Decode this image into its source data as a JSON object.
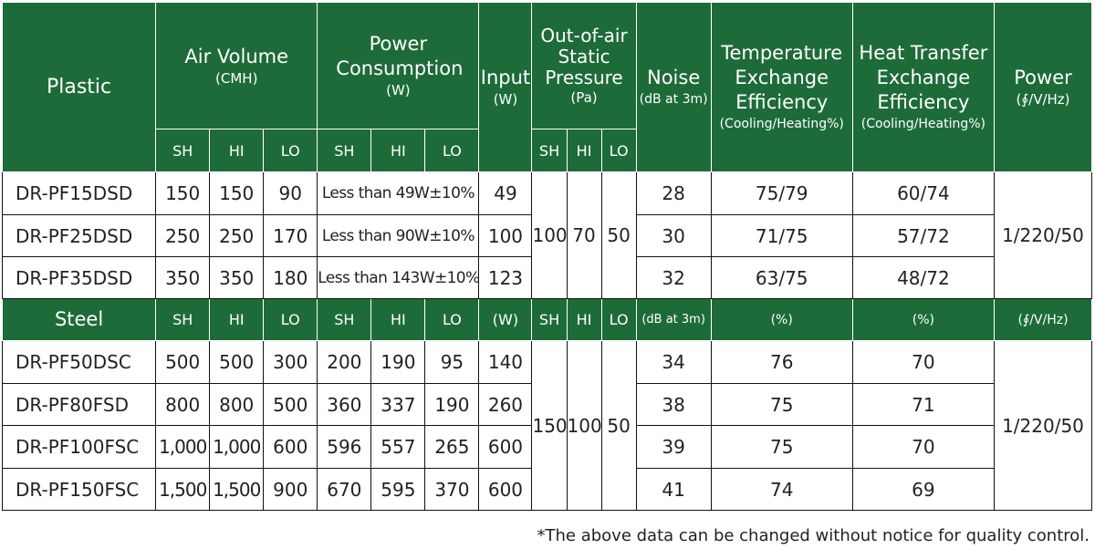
{
  "header": {
    "plastic": "Plastic",
    "air_volume": "Air Volume",
    "air_volume_unit": "(CMH)",
    "power_consumption": "Power Consumption",
    "power_consumption_unit": "(W)",
    "input": "Input",
    "input_unit": "(W)",
    "static_pressure": "Out-of-air Static Pressure",
    "static_pressure_unit": "(Pa)",
    "noise": "Noise",
    "noise_unit": "(dB at 3m)",
    "temp_eff": "Temperature Exchange Efficiency",
    "temp_eff_unit": "(Cooling/Heating%)",
    "heat_eff": "Heat Transfer Exchange Efficiency",
    "heat_eff_unit": "(Cooling/Heating%)",
    "power": "Power",
    "power_unit": "(∮/V/Hz)",
    "sh": "SH",
    "hi": "HI",
    "lo": "LO"
  },
  "plastic_rows": [
    {
      "model": "DR-PF15DSD",
      "sh": "150",
      "hi": "150",
      "lo": "90",
      "consumption": "Less than 49W±10%",
      "input": "49",
      "noise": "28",
      "temp": "75/79",
      "heat": "60/74"
    },
    {
      "model": "DR-PF25DSD",
      "sh": "250",
      "hi": "250",
      "lo": "170",
      "consumption": "Less than 90W±10%",
      "input": "100",
      "noise": "30",
      "temp": "71/75",
      "heat": "57/72"
    },
    {
      "model": "DR-PF35DSD",
      "sh": "350",
      "hi": "350",
      "lo": "180",
      "consumption": "Less than 143W±10%",
      "input": "123",
      "noise": "32",
      "temp": "63/75",
      "heat": "48/72"
    }
  ],
  "plastic_shared": {
    "sp_sh": "100",
    "sp_hi": "70",
    "sp_lo": "50",
    "power": "1/220/50"
  },
  "steel_header": {
    "label": "Steel",
    "sh": "SH",
    "hi": "HI",
    "lo": "LO",
    "c_sh": "SH",
    "c_hi": "HI",
    "c_lo": "LO",
    "input": "(W)",
    "p_sh": "SH",
    "p_hi": "HI",
    "p_lo": "LO",
    "noise": "(dB at 3m)",
    "temp": "(%)",
    "heat": "(%)",
    "power": "(∮/V/Hz)"
  },
  "steel_rows": [
    {
      "model": "DR-PF50DSC",
      "sh": "500",
      "hi": "500",
      "lo": "300",
      "c_sh": "200",
      "c_hi": "190",
      "c_lo": "95",
      "input": "140",
      "noise": "34",
      "temp": "76",
      "heat": "70"
    },
    {
      "model": "DR-PF80FSD",
      "sh": "800",
      "hi": "800",
      "lo": "500",
      "c_sh": "360",
      "c_hi": "337",
      "c_lo": "190",
      "input": "260",
      "noise": "38",
      "temp": "75",
      "heat": "71"
    },
    {
      "model": "DR-PF100FSC",
      "sh": "1,000",
      "hi": "1,000",
      "lo": "600",
      "c_sh": "596",
      "c_hi": "557",
      "c_lo": "265",
      "input": "600",
      "noise": "39",
      "temp": "75",
      "heat": "70"
    },
    {
      "model": "DR-PF150FSC",
      "sh": "1,500",
      "hi": "1,500",
      "lo": "900",
      "c_sh": "670",
      "c_hi": "595",
      "c_lo": "370",
      "input": "600",
      "noise": "41",
      "temp": "74",
      "heat": "69"
    }
  ],
  "steel_shared": {
    "sp_sh": "150",
    "sp_hi": "100",
    "sp_lo": "50",
    "power": "1/220/50"
  },
  "footnote": "*The above data can be changed without notice for quality control."
}
